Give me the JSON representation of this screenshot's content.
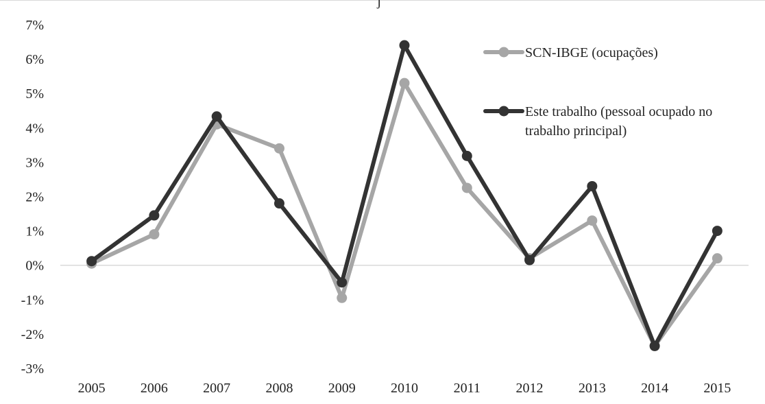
{
  "chart_data": {
    "type": "line",
    "title": "",
    "title_fragment": "j",
    "xlabel": "",
    "ylabel": "",
    "categories": [
      "2005",
      "2006",
      "2007",
      "2008",
      "2009",
      "2010",
      "2011",
      "2012",
      "2013",
      "2014",
      "2015"
    ],
    "ylim": [
      -3,
      7
    ],
    "yticks": [
      -3,
      -2,
      -1,
      0,
      1,
      2,
      3,
      4,
      5,
      6,
      7
    ],
    "ytick_labels": [
      "-3%",
      "-2%",
      "-1%",
      "0%",
      "1%",
      "2%",
      "3%",
      "4%",
      "5%",
      "6%",
      "7%"
    ],
    "y_unit": "%",
    "grid": false,
    "zero_line": true,
    "legend_position": "top-right",
    "series": [
      {
        "name": "SCN-IBGE (ocupações)",
        "color": "#a6a6a6",
        "values": [
          0.05,
          0.9,
          4.1,
          3.4,
          -0.95,
          5.3,
          2.25,
          0.2,
          1.3,
          -2.35,
          0.2
        ]
      },
      {
        "name": "Este trabalho (pessoal ocupado no trabalho principal)",
        "legend_lines": [
          "Este trabalho (pessoal ocupado no",
          "trabalho principal)"
        ],
        "color": "#333333",
        "values": [
          0.12,
          1.45,
          4.33,
          1.8,
          -0.5,
          6.4,
          3.18,
          0.15,
          2.3,
          -2.35,
          1.0
        ]
      }
    ]
  }
}
